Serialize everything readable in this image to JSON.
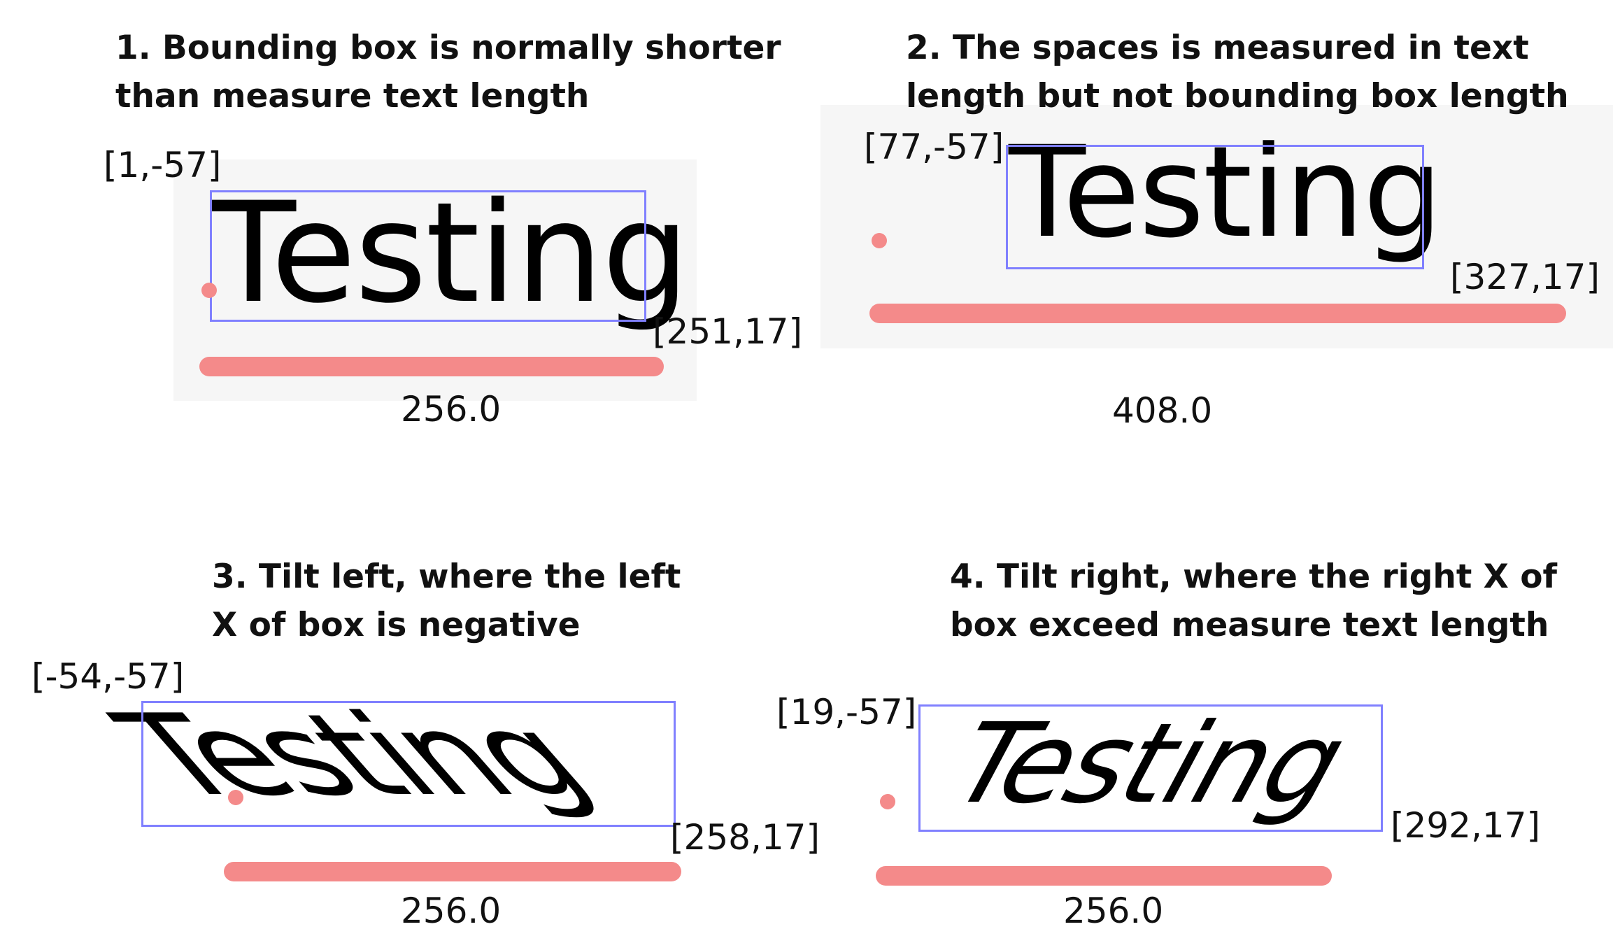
{
  "panels": [
    {
      "heading_lines": [
        "1. Bounding box is normally shorter",
        "than measure text length"
      ],
      "sample_text": "Testing",
      "top_left": "[1,-57]",
      "bottom_right": "[251,17]",
      "measure": "256.0"
    },
    {
      "heading_lines": [
        "2. The spaces is measured in text",
        "length but not bounding box length"
      ],
      "sample_text": "Testing",
      "top_left": "[77,-57]",
      "bottom_right": "[327,17]",
      "measure": "408.0"
    },
    {
      "heading_lines": [
        "3. Tilt left, where the left",
        "X of box is negative"
      ],
      "sample_text": "Testing",
      "top_left": "[-54,-57]",
      "bottom_right": "[258,17]",
      "measure": "256.0"
    },
    {
      "heading_lines": [
        "4. Tilt right, where the right X of",
        "box exceed measure text length"
      ],
      "sample_text": "Testing",
      "top_left": "[19,-57]",
      "bottom_right": "[292,17]",
      "measure": "256.0"
    }
  ],
  "colors": {
    "bounding_box": "#8080ff",
    "measure_bar": "#f48a8a",
    "origin_dot": "#f48a8a",
    "panel_background": "#f6f6f6",
    "text": "#111111"
  }
}
